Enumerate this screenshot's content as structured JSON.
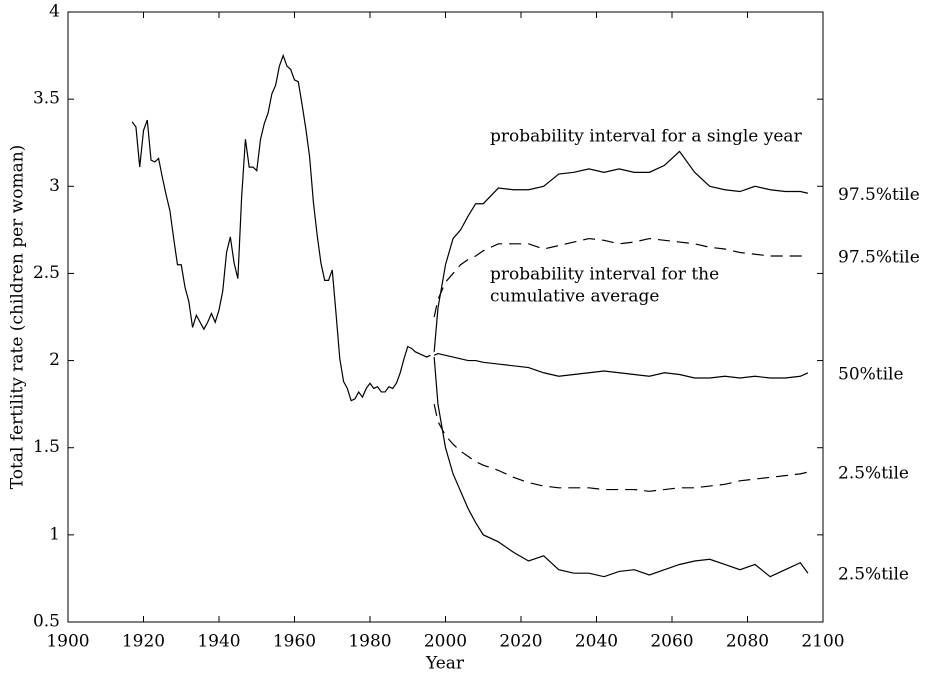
{
  "chart_data": {
    "type": "line",
    "x_label": "Year",
    "y_label": "Total fertility rate (children per woman)",
    "xlim": [
      1900,
      2100
    ],
    "xticks": [
      1900,
      1920,
      1940,
      1960,
      1980,
      2000,
      2020,
      2040,
      2060,
      2080,
      2100
    ],
    "ylim": [
      0.5,
      4
    ],
    "yticks": [
      0.5,
      1,
      1.5,
      2,
      2.5,
      3,
      3.5,
      4
    ],
    "annotations": [
      "probability interval for a single year",
      "probability interval for the",
      "cumulative average"
    ],
    "series": [
      {
        "color": "#000000",
        "dash": false,
        "x": [
          1917,
          1918,
          1919,
          1920,
          1921,
          1922,
          1923,
          1924,
          1925,
          1926,
          1927,
          1928,
          1929,
          1930,
          1931,
          1932,
          1933,
          1934,
          1935,
          1936,
          1937,
          1938,
          1939,
          1940,
          1941,
          1942,
          1943,
          1944,
          1945,
          1946,
          1947,
          1948,
          1949,
          1950,
          1951,
          1952,
          1953,
          1954,
          1955,
          1956,
          1957,
          1958,
          1959,
          1960,
          1961,
          1962,
          1963,
          1964,
          1965,
          1966,
          1967,
          1968,
          1969,
          1970,
          1971,
          1972,
          1973,
          1974,
          1975,
          1976,
          1977,
          1978,
          1979,
          1980,
          1981,
          1982,
          1983,
          1984,
          1985,
          1986,
          1987,
          1988,
          1989,
          1990,
          1991,
          1992,
          1993,
          1994,
          1995,
          1996
        ],
        "values": [
          3.37,
          3.34,
          3.11,
          3.32,
          3.38,
          3.15,
          3.14,
          3.16,
          3.05,
          2.95,
          2.86,
          2.7,
          2.55,
          2.55,
          2.42,
          2.34,
          2.19,
          2.26,
          2.22,
          2.18,
          2.22,
          2.27,
          2.22,
          2.29,
          2.4,
          2.62,
          2.71,
          2.56,
          2.47,
          2.94,
          3.27,
          3.11,
          3.11,
          3.09,
          3.27,
          3.36,
          3.42,
          3.53,
          3.58,
          3.69,
          3.75,
          3.69,
          3.67,
          3.61,
          3.6,
          3.47,
          3.33,
          3.17,
          2.91,
          2.72,
          2.56,
          2.46,
          2.46,
          2.52,
          2.27,
          2.01,
          1.88,
          1.84,
          1.77,
          1.78,
          1.82,
          1.79,
          1.84,
          1.87,
          1.84,
          1.85,
          1.82,
          1.82,
          1.85,
          1.84,
          1.87,
          1.93,
          2.01,
          2.08,
          2.07,
          2.05,
          2.04,
          2.03,
          2.02,
          2.03
        ]
      },
      {
        "name": "97.5%tile",
        "color": "#000000",
        "dash": false,
        "x": [
          1997,
          1998,
          2000,
          2002,
          2004,
          2006,
          2008,
          2010,
          2014,
          2018,
          2022,
          2026,
          2030,
          2034,
          2038,
          2042,
          2046,
          2050,
          2054,
          2058,
          2062,
          2066,
          2070,
          2074,
          2078,
          2082,
          2086,
          2090,
          2094,
          2096
        ],
        "values": [
          2.05,
          2.3,
          2.55,
          2.7,
          2.75,
          2.83,
          2.9,
          2.9,
          2.99,
          2.98,
          2.98,
          3.0,
          3.07,
          3.08,
          3.1,
          3.08,
          3.1,
          3.08,
          3.08,
          3.12,
          3.2,
          3.08,
          3.0,
          2.98,
          2.97,
          3.0,
          2.98,
          2.97,
          2.97,
          2.96
        ]
      },
      {
        "name": "97.5%tile",
        "color": "#000000",
        "dash": true,
        "x": [
          1997,
          1998,
          2000,
          2002,
          2004,
          2006,
          2008,
          2010,
          2014,
          2018,
          2022,
          2026,
          2030,
          2034,
          2038,
          2042,
          2046,
          2050,
          2054,
          2058,
          2062,
          2066,
          2070,
          2074,
          2078,
          2082,
          2086,
          2090,
          2094,
          2096
        ],
        "values": [
          2.25,
          2.35,
          2.45,
          2.5,
          2.55,
          2.58,
          2.6,
          2.63,
          2.67,
          2.67,
          2.67,
          2.64,
          2.66,
          2.68,
          2.7,
          2.69,
          2.67,
          2.68,
          2.7,
          2.69,
          2.68,
          2.67,
          2.65,
          2.64,
          2.62,
          2.61,
          2.6,
          2.6,
          2.6,
          2.6
        ]
      },
      {
        "name": "50%tile",
        "color": "#000000",
        "dash": false,
        "x": [
          1997,
          1998,
          2000,
          2002,
          2004,
          2006,
          2008,
          2010,
          2014,
          2018,
          2022,
          2026,
          2030,
          2034,
          2038,
          2042,
          2046,
          2050,
          2054,
          2058,
          2062,
          2066,
          2070,
          2074,
          2078,
          2082,
          2086,
          2090,
          2094,
          2096
        ],
        "values": [
          2.03,
          2.04,
          2.03,
          2.02,
          2.01,
          2.0,
          2.0,
          1.99,
          1.98,
          1.97,
          1.96,
          1.93,
          1.91,
          1.92,
          1.93,
          1.94,
          1.93,
          1.92,
          1.91,
          1.93,
          1.92,
          1.9,
          1.9,
          1.91,
          1.9,
          1.91,
          1.9,
          1.9,
          1.91,
          1.93
        ]
      },
      {
        "name": "2.5%tile",
        "color": "#000000",
        "dash": true,
        "x": [
          1997,
          1998,
          2000,
          2002,
          2004,
          2006,
          2008,
          2010,
          2014,
          2018,
          2022,
          2026,
          2030,
          2034,
          2038,
          2042,
          2046,
          2050,
          2054,
          2058,
          2062,
          2066,
          2070,
          2074,
          2078,
          2082,
          2086,
          2090,
          2094,
          2096
        ],
        "values": [
          1.75,
          1.65,
          1.57,
          1.52,
          1.48,
          1.45,
          1.42,
          1.4,
          1.37,
          1.33,
          1.3,
          1.28,
          1.27,
          1.27,
          1.27,
          1.26,
          1.26,
          1.26,
          1.25,
          1.26,
          1.27,
          1.27,
          1.28,
          1.29,
          1.31,
          1.32,
          1.33,
          1.34,
          1.35,
          1.36
        ]
      },
      {
        "name": "2.5%tile",
        "color": "#000000",
        "dash": false,
        "x": [
          1997,
          1998,
          2000,
          2002,
          2004,
          2006,
          2008,
          2010,
          2014,
          2018,
          2022,
          2026,
          2030,
          2034,
          2038,
          2042,
          2046,
          2050,
          2054,
          2058,
          2062,
          2066,
          2070,
          2074,
          2078,
          2082,
          2086,
          2090,
          2094,
          2096
        ],
        "values": [
          2.02,
          1.75,
          1.5,
          1.35,
          1.25,
          1.15,
          1.07,
          1.0,
          0.96,
          0.9,
          0.85,
          0.88,
          0.8,
          0.78,
          0.78,
          0.76,
          0.79,
          0.8,
          0.77,
          0.8,
          0.83,
          0.85,
          0.86,
          0.83,
          0.8,
          0.83,
          0.76,
          0.8,
          0.84,
          0.78
        ]
      }
    ]
  }
}
